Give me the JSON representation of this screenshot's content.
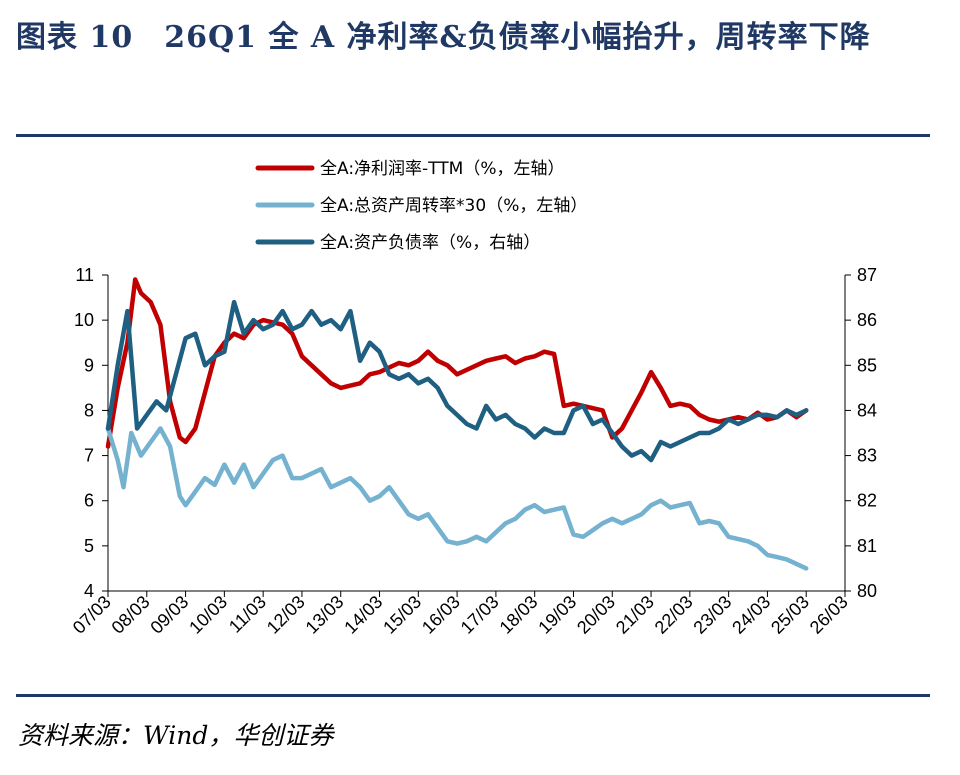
{
  "title": "图表 10　26Q1 全 A 净利率&负债率小幅抬升，周转率下降",
  "source": "资料来源：Wind，华创证券",
  "chart_data": {
    "type": "line",
    "x_ticks": [
      "07/03",
      "08/03",
      "09/03",
      "10/03",
      "11/03",
      "12/03",
      "13/03",
      "14/03",
      "15/03",
      "16/03",
      "17/03",
      "18/03",
      "19/03",
      "20/03",
      "21/03",
      "22/03",
      "23/03",
      "24/03",
      "25/03",
      "26/03"
    ],
    "y_left": {
      "ticks": [
        4,
        5,
        6,
        7,
        8,
        9,
        10,
        11
      ],
      "ylim": [
        4,
        11
      ]
    },
    "y_right": {
      "ticks": [
        80,
        81,
        82,
        83,
        84,
        85,
        86,
        87
      ],
      "ylim": [
        80,
        87
      ]
    },
    "grid": false,
    "legend_position": "top-center",
    "series": [
      {
        "name": "全A:净利润率-TTM（%，左轴）",
        "axis": "left",
        "color": "#c00000",
        "points": [
          [
            2007.0,
            7.2
          ],
          [
            2007.25,
            8.5
          ],
          [
            2007.5,
            9.5
          ],
          [
            2007.7,
            10.9
          ],
          [
            2007.85,
            10.6
          ],
          [
            2008.1,
            10.4
          ],
          [
            2008.35,
            9.9
          ],
          [
            2008.6,
            8.2
          ],
          [
            2008.85,
            7.4
          ],
          [
            2009.0,
            7.3
          ],
          [
            2009.25,
            7.6
          ],
          [
            2009.5,
            8.4
          ],
          [
            2009.75,
            9.2
          ],
          [
            2010.0,
            9.5
          ],
          [
            2010.25,
            9.7
          ],
          [
            2010.5,
            9.6
          ],
          [
            2010.75,
            9.9
          ],
          [
            2011.0,
            10.0
          ],
          [
            2011.25,
            9.95
          ],
          [
            2011.5,
            9.9
          ],
          [
            2011.75,
            9.7
          ],
          [
            2012.0,
            9.2
          ],
          [
            2012.25,
            9.0
          ],
          [
            2012.5,
            8.8
          ],
          [
            2012.75,
            8.6
          ],
          [
            2013.0,
            8.5
          ],
          [
            2013.25,
            8.55
          ],
          [
            2013.5,
            8.6
          ],
          [
            2013.75,
            8.8
          ],
          [
            2014.0,
            8.85
          ],
          [
            2014.25,
            8.95
          ],
          [
            2014.5,
            9.05
          ],
          [
            2014.75,
            9.0
          ],
          [
            2015.0,
            9.1
          ],
          [
            2015.25,
            9.3
          ],
          [
            2015.5,
            9.1
          ],
          [
            2015.75,
            9.0
          ],
          [
            2016.0,
            8.8
          ],
          [
            2016.25,
            8.9
          ],
          [
            2016.5,
            9.0
          ],
          [
            2016.75,
            9.1
          ],
          [
            2017.0,
            9.15
          ],
          [
            2017.25,
            9.2
          ],
          [
            2017.5,
            9.05
          ],
          [
            2017.75,
            9.15
          ],
          [
            2018.0,
            9.2
          ],
          [
            2018.25,
            9.3
          ],
          [
            2018.5,
            9.25
          ],
          [
            2018.75,
            8.1
          ],
          [
            2019.0,
            8.15
          ],
          [
            2019.25,
            8.1
          ],
          [
            2019.5,
            8.05
          ],
          [
            2019.75,
            8.0
          ],
          [
            2020.0,
            7.4
          ],
          [
            2020.25,
            7.6
          ],
          [
            2020.5,
            8.0
          ],
          [
            2020.75,
            8.4
          ],
          [
            2021.0,
            8.85
          ],
          [
            2021.25,
            8.5
          ],
          [
            2021.5,
            8.1
          ],
          [
            2021.75,
            8.15
          ],
          [
            2022.0,
            8.1
          ],
          [
            2022.25,
            7.9
          ],
          [
            2022.5,
            7.8
          ],
          [
            2022.75,
            7.75
          ],
          [
            2023.0,
            7.8
          ],
          [
            2023.25,
            7.85
          ],
          [
            2023.5,
            7.8
          ],
          [
            2023.75,
            7.95
          ],
          [
            2024.0,
            7.8
          ],
          [
            2024.25,
            7.85
          ],
          [
            2024.5,
            8.0
          ],
          [
            2024.75,
            7.85
          ],
          [
            2025.0,
            8.0
          ]
        ]
      },
      {
        "name": "全A:总资产周转率*30（%，左轴）",
        "axis": "left",
        "color": "#74b2d0",
        "points": [
          [
            2007.0,
            7.6
          ],
          [
            2007.25,
            6.9
          ],
          [
            2007.4,
            6.3
          ],
          [
            2007.6,
            7.5
          ],
          [
            2007.85,
            7.0
          ],
          [
            2008.1,
            7.3
          ],
          [
            2008.35,
            7.6
          ],
          [
            2008.6,
            7.2
          ],
          [
            2008.85,
            6.1
          ],
          [
            2009.0,
            5.9
          ],
          [
            2009.25,
            6.2
          ],
          [
            2009.5,
            6.5
          ],
          [
            2009.75,
            6.35
          ],
          [
            2010.0,
            6.8
          ],
          [
            2010.25,
            6.4
          ],
          [
            2010.5,
            6.8
          ],
          [
            2010.75,
            6.3
          ],
          [
            2011.0,
            6.6
          ],
          [
            2011.25,
            6.9
          ],
          [
            2011.5,
            7.0
          ],
          [
            2011.75,
            6.5
          ],
          [
            2012.0,
            6.5
          ],
          [
            2012.25,
            6.6
          ],
          [
            2012.5,
            6.7
          ],
          [
            2012.75,
            6.3
          ],
          [
            2013.0,
            6.4
          ],
          [
            2013.25,
            6.5
          ],
          [
            2013.5,
            6.3
          ],
          [
            2013.75,
            6.0
          ],
          [
            2014.0,
            6.1
          ],
          [
            2014.25,
            6.3
          ],
          [
            2014.5,
            6.0
          ],
          [
            2014.75,
            5.7
          ],
          [
            2015.0,
            5.6
          ],
          [
            2015.25,
            5.7
          ],
          [
            2015.5,
            5.4
          ],
          [
            2015.75,
            5.1
          ],
          [
            2016.0,
            5.05
          ],
          [
            2016.25,
            5.1
          ],
          [
            2016.5,
            5.2
          ],
          [
            2016.75,
            5.1
          ],
          [
            2017.0,
            5.3
          ],
          [
            2017.25,
            5.5
          ],
          [
            2017.5,
            5.6
          ],
          [
            2017.75,
            5.8
          ],
          [
            2018.0,
            5.9
          ],
          [
            2018.25,
            5.75
          ],
          [
            2018.5,
            5.8
          ],
          [
            2018.75,
            5.85
          ],
          [
            2019.0,
            5.25
          ],
          [
            2019.25,
            5.2
          ],
          [
            2019.5,
            5.35
          ],
          [
            2019.75,
            5.5
          ],
          [
            2020.0,
            5.6
          ],
          [
            2020.25,
            5.5
          ],
          [
            2020.5,
            5.6
          ],
          [
            2020.75,
            5.7
          ],
          [
            2021.0,
            5.9
          ],
          [
            2021.25,
            6.0
          ],
          [
            2021.5,
            5.85
          ],
          [
            2021.75,
            5.9
          ],
          [
            2022.0,
            5.95
          ],
          [
            2022.25,
            5.5
          ],
          [
            2022.5,
            5.55
          ],
          [
            2022.75,
            5.5
          ],
          [
            2023.0,
            5.2
          ],
          [
            2023.25,
            5.15
          ],
          [
            2023.5,
            5.1
          ],
          [
            2023.75,
            5.0
          ],
          [
            2024.0,
            4.8
          ],
          [
            2024.25,
            4.75
          ],
          [
            2024.5,
            4.7
          ],
          [
            2024.75,
            4.6
          ],
          [
            2025.0,
            4.5
          ]
        ]
      },
      {
        "name": "全A:资产负债率（%，右轴）",
        "axis": "right",
        "color": "#1f5f82",
        "points": [
          [
            2007.0,
            83.6
          ],
          [
            2007.25,
            85.0
          ],
          [
            2007.5,
            86.2
          ],
          [
            2007.75,
            83.6
          ],
          [
            2008.0,
            83.9
          ],
          [
            2008.25,
            84.2
          ],
          [
            2008.5,
            84.0
          ],
          [
            2008.75,
            84.8
          ],
          [
            2009.0,
            85.6
          ],
          [
            2009.25,
            85.7
          ],
          [
            2009.5,
            85.0
          ],
          [
            2009.75,
            85.2
          ],
          [
            2010.0,
            85.3
          ],
          [
            2010.25,
            86.4
          ],
          [
            2010.5,
            85.7
          ],
          [
            2010.75,
            86.0
          ],
          [
            2011.0,
            85.8
          ],
          [
            2011.25,
            85.9
          ],
          [
            2011.5,
            86.2
          ],
          [
            2011.75,
            85.8
          ],
          [
            2012.0,
            85.9
          ],
          [
            2012.25,
            86.2
          ],
          [
            2012.5,
            85.9
          ],
          [
            2012.75,
            86.0
          ],
          [
            2013.0,
            85.8
          ],
          [
            2013.25,
            86.2
          ],
          [
            2013.5,
            85.1
          ],
          [
            2013.75,
            85.5
          ],
          [
            2014.0,
            85.3
          ],
          [
            2014.25,
            84.8
          ],
          [
            2014.5,
            84.7
          ],
          [
            2014.75,
            84.8
          ],
          [
            2015.0,
            84.6
          ],
          [
            2015.25,
            84.7
          ],
          [
            2015.5,
            84.5
          ],
          [
            2015.75,
            84.1
          ],
          [
            2016.0,
            83.9
          ],
          [
            2016.25,
            83.7
          ],
          [
            2016.5,
            83.6
          ],
          [
            2016.75,
            84.1
          ],
          [
            2017.0,
            83.8
          ],
          [
            2017.25,
            83.9
          ],
          [
            2017.5,
            83.7
          ],
          [
            2017.75,
            83.6
          ],
          [
            2018.0,
            83.4
          ],
          [
            2018.25,
            83.6
          ],
          [
            2018.5,
            83.5
          ],
          [
            2018.75,
            83.5
          ],
          [
            2019.0,
            84.0
          ],
          [
            2019.25,
            84.1
          ],
          [
            2019.5,
            83.7
          ],
          [
            2019.75,
            83.8
          ],
          [
            2020.0,
            83.5
          ],
          [
            2020.25,
            83.2
          ],
          [
            2020.5,
            83.0
          ],
          [
            2020.75,
            83.1
          ],
          [
            2021.0,
            82.9
          ],
          [
            2021.25,
            83.3
          ],
          [
            2021.5,
            83.2
          ],
          [
            2021.75,
            83.3
          ],
          [
            2022.0,
            83.4
          ],
          [
            2022.25,
            83.5
          ],
          [
            2022.5,
            83.5
          ],
          [
            2022.75,
            83.6
          ],
          [
            2023.0,
            83.8
          ],
          [
            2023.25,
            83.7
          ],
          [
            2023.5,
            83.8
          ],
          [
            2023.75,
            83.9
          ],
          [
            2024.0,
            83.9
          ],
          [
            2024.25,
            83.85
          ],
          [
            2024.5,
            84.0
          ],
          [
            2024.75,
            83.9
          ],
          [
            2025.0,
            84.0
          ]
        ]
      }
    ]
  }
}
